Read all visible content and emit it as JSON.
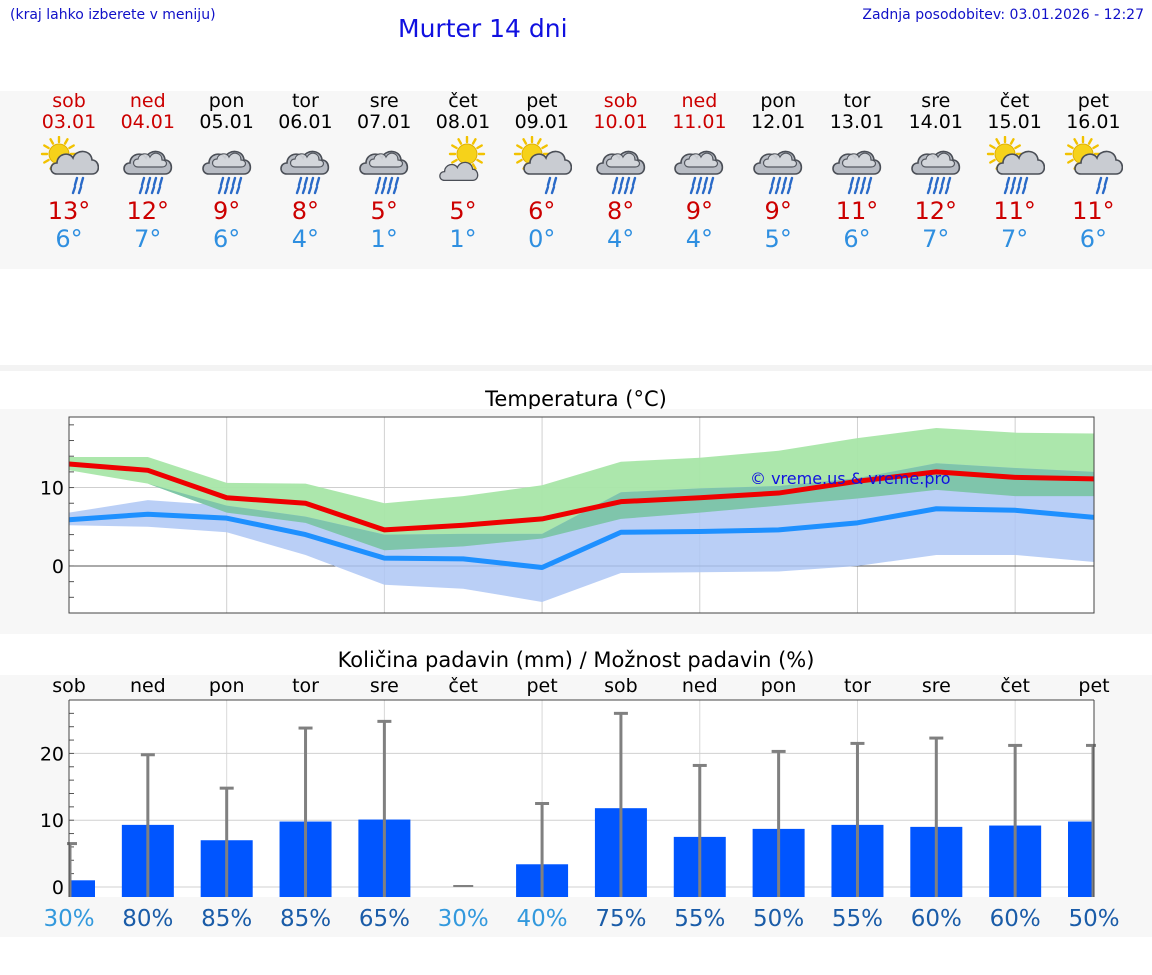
{
  "header": {
    "hint": "(kraj lahko izberete v meniju)",
    "title": "Murter 14 dni",
    "updated": "Zadnja posodobitev: 03.01.2026 - 12:27"
  },
  "days": [
    {
      "name": "sob",
      "date": "03.01",
      "weekend": true,
      "icon": "sun-cloud-rain-icon",
      "max": "13°",
      "min": "6°"
    },
    {
      "name": "ned",
      "date": "04.01",
      "weekend": true,
      "icon": "cloud-rain-icon",
      "max": "12°",
      "min": "7°"
    },
    {
      "name": "pon",
      "date": "05.01",
      "weekend": false,
      "icon": "cloud-rain-icon",
      "max": "9°",
      "min": "6°"
    },
    {
      "name": "tor",
      "date": "06.01",
      "weekend": false,
      "icon": "cloud-rain-icon",
      "max": "8°",
      "min": "4°"
    },
    {
      "name": "sre",
      "date": "07.01",
      "weekend": false,
      "icon": "cloud-rain-icon",
      "max": "5°",
      "min": "1°"
    },
    {
      "name": "čet",
      "date": "08.01",
      "weekend": false,
      "icon": "sun-cloud-icon",
      "max": "5°",
      "min": "1°"
    },
    {
      "name": "pet",
      "date": "09.01",
      "weekend": false,
      "icon": "sun-cloud-rain-icon",
      "max": "6°",
      "min": "0°"
    },
    {
      "name": "sob",
      "date": "10.01",
      "weekend": true,
      "icon": "cloud-rain-icon",
      "max": "8°",
      "min": "4°"
    },
    {
      "name": "ned",
      "date": "11.01",
      "weekend": true,
      "icon": "cloud-rain-icon",
      "max": "9°",
      "min": "4°"
    },
    {
      "name": "pon",
      "date": "12.01",
      "weekend": false,
      "icon": "cloud-rain-icon",
      "max": "9°",
      "min": "5°"
    },
    {
      "name": "tor",
      "date": "13.01",
      "weekend": false,
      "icon": "cloud-rain-icon",
      "max": "11°",
      "min": "6°"
    },
    {
      "name": "sre",
      "date": "14.01",
      "weekend": false,
      "icon": "cloud-rain-icon",
      "max": "12°",
      "min": "7°"
    },
    {
      "name": "čet",
      "date": "15.01",
      "weekend": false,
      "icon": "sun-cloud-heavy-rain-icon",
      "max": "11°",
      "min": "7°"
    },
    {
      "name": "pet",
      "date": "16.01",
      "weekend": false,
      "icon": "sun-cloud-rain-icon",
      "max": "11°",
      "min": "6°"
    }
  ],
  "colors": {
    "max_line": "#ee0000",
    "min_line": "#1e90ff",
    "max_band_outer": "#a8e6a8",
    "min_band_outer": "#aec7f4",
    "overlap_band": "#7cc4a8",
    "bar": "#0055ff",
    "whisker": "#808080",
    "weekend": "#cc0000",
    "prob_low": "#3399dd",
    "prob_high": "#1a5ca8"
  },
  "chart_data": [
    {
      "type": "line",
      "title": "Temperatura (°C)",
      "watermark": "© vreme.us & vreme.pro",
      "ylim": [
        -6,
        19
      ],
      "yticks": [
        0,
        10
      ],
      "grid": true,
      "series": [
        {
          "name": "max",
          "values": [
            13,
            12.2,
            8.7,
            8,
            4.6,
            5.2,
            6,
            8.2,
            8.7,
            9.3,
            10.8,
            12,
            11.3,
            11.1
          ],
          "band_low": [
            12.2,
            10.5,
            6.8,
            5.5,
            2,
            2.5,
            3.5,
            6,
            6.8,
            7.7,
            8.6,
            9.7,
            8.9,
            8.9
          ],
          "band_high": [
            13.9,
            13.9,
            10.6,
            10.5,
            8,
            8.9,
            10.3,
            13.3,
            13.8,
            14.7,
            16.3,
            17.6,
            17,
            16.9
          ]
        },
        {
          "name": "min",
          "values": [
            5.9,
            6.6,
            6.1,
            4,
            1,
            0.9,
            -0.2,
            4.3,
            4.4,
            4.6,
            5.5,
            7.3,
            7.1,
            6.2
          ],
          "band_low": [
            5.2,
            5,
            4.3,
            1.4,
            -2.4,
            -2.9,
            -4.6,
            -0.9,
            -0.8,
            -0.7,
            0,
            1.4,
            1.4,
            0.5
          ],
          "band_high": [
            6.8,
            8.4,
            7.7,
            6.3,
            4,
            4.1,
            4.1,
            9.4,
            9.9,
            10.2,
            11.2,
            13.1,
            12.5,
            12
          ]
        }
      ]
    },
    {
      "type": "bar",
      "title": "Količina padavin (mm) / Možnost padavin (%)",
      "categories": [
        "sob",
        "ned",
        "pon",
        "tor",
        "sre",
        "čet",
        "pet",
        "sob",
        "ned",
        "pon",
        "tor",
        "sre",
        "čet",
        "pet"
      ],
      "values": [
        1,
        9.3,
        7,
        9.8,
        10.1,
        0,
        3.4,
        11.8,
        7.5,
        8.7,
        9.3,
        9,
        9.2,
        9.8
      ],
      "whisker_max": [
        6.5,
        19.8,
        14.8,
        23.8,
        24.8,
        0,
        12.5,
        26,
        18.2,
        20.3,
        21.5,
        22.3,
        21.2,
        21.2
      ],
      "probability": [
        "30%",
        "80%",
        "85%",
        "85%",
        "65%",
        "30%",
        "40%",
        "75%",
        "55%",
        "50%",
        "55%",
        "60%",
        "60%",
        "50%"
      ],
      "probability_values": [
        30,
        80,
        85,
        85,
        65,
        30,
        40,
        75,
        55,
        50,
        55,
        60,
        60,
        50
      ],
      "ylim": [
        -1.5,
        28
      ],
      "yticks": [
        0,
        10,
        20
      ],
      "grid": true
    }
  ]
}
